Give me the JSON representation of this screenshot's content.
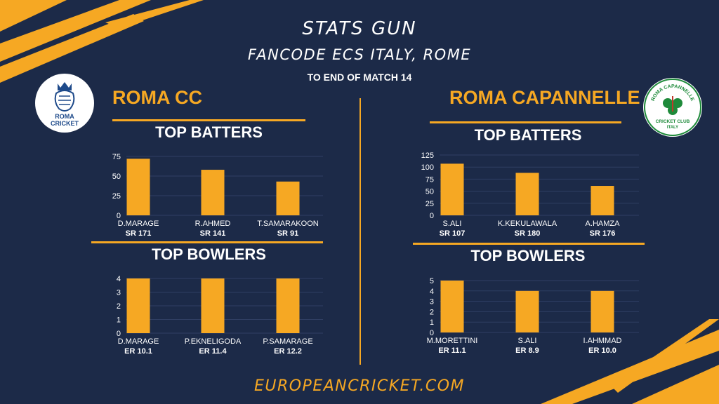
{
  "header": {
    "title": "STATS GUN",
    "subtitle": "FANCODE ECS ITALY, ROME",
    "note": "TO END OF MATCH 14"
  },
  "footer": {
    "site": "EUROPEANCRICKET.COM"
  },
  "colors": {
    "background": "#1c2a48",
    "accent": "#f6a823",
    "text": "#ffffff"
  },
  "teams": [
    {
      "name": "ROMA CC",
      "logo": {
        "line1": "ROMA",
        "line2": "CRICKET",
        "icon": "crowned-lion-icon"
      },
      "batters_title": "TOP BATTERS",
      "bowlers_title": "TOP BOWLERS"
    },
    {
      "name": "ROMA CAPANNELLE",
      "logo": {
        "top_text": "ROMA CAPANNELLE",
        "bottom_text": "CRICKET CLUB",
        "bottom_text2": "ITALY",
        "icon": "shamrock-icon"
      },
      "batters_title": "TOP BATTERS",
      "bowlers_title": "TOP BOWLERS"
    }
  ],
  "chart_data": [
    {
      "id": "c1",
      "type": "bar",
      "team": "ROMA CC",
      "metric_title": "TOP BATTERS",
      "categories": [
        "D.MARAGE",
        "R.AHMED",
        "T.SAMARAKOON"
      ],
      "values": [
        72,
        58,
        43
      ],
      "sublabels": [
        "SR 171",
        "SR 141",
        "SR 91"
      ],
      "yticks": [
        0,
        25,
        50,
        75
      ],
      "ylim": [
        0,
        75
      ],
      "grid": true
    },
    {
      "id": "c2",
      "type": "bar",
      "team": "ROMA CC",
      "metric_title": "TOP BOWLERS",
      "categories": [
        "D.MARAGE",
        "P.EKNELIGODA",
        "P.SAMARAGE"
      ],
      "values": [
        4,
        4,
        4
      ],
      "sublabels": [
        "ER 10.1",
        "ER 11.4",
        "ER 12.2"
      ],
      "yticks": [
        0,
        1,
        2,
        3,
        4
      ],
      "ylim": [
        0,
        4
      ],
      "grid": true
    },
    {
      "id": "c3",
      "type": "bar",
      "team": "ROMA CAPANNELLE",
      "metric_title": "TOP BATTERS",
      "categories": [
        "S.ALI",
        "K.KEKULAWALA",
        "A.HAMZA"
      ],
      "values": [
        107,
        88,
        61
      ],
      "sublabels": [
        "SR 107",
        "SR 180",
        "SR 176"
      ],
      "yticks": [
        0,
        25,
        50,
        75,
        100,
        125
      ],
      "ylim": [
        0,
        125
      ],
      "grid": true
    },
    {
      "id": "c4",
      "type": "bar",
      "team": "ROMA CAPANNELLE",
      "metric_title": "TOP BOWLERS",
      "categories": [
        "M.MORETTINI",
        "S.ALI",
        "I.AHMMAD"
      ],
      "values": [
        5,
        4,
        4
      ],
      "sublabels": [
        "ER 11.1",
        "ER 8.9",
        "ER 10.0"
      ],
      "yticks": [
        0,
        1,
        2,
        3,
        4,
        5
      ],
      "ylim": [
        0,
        5
      ],
      "grid": true
    }
  ]
}
